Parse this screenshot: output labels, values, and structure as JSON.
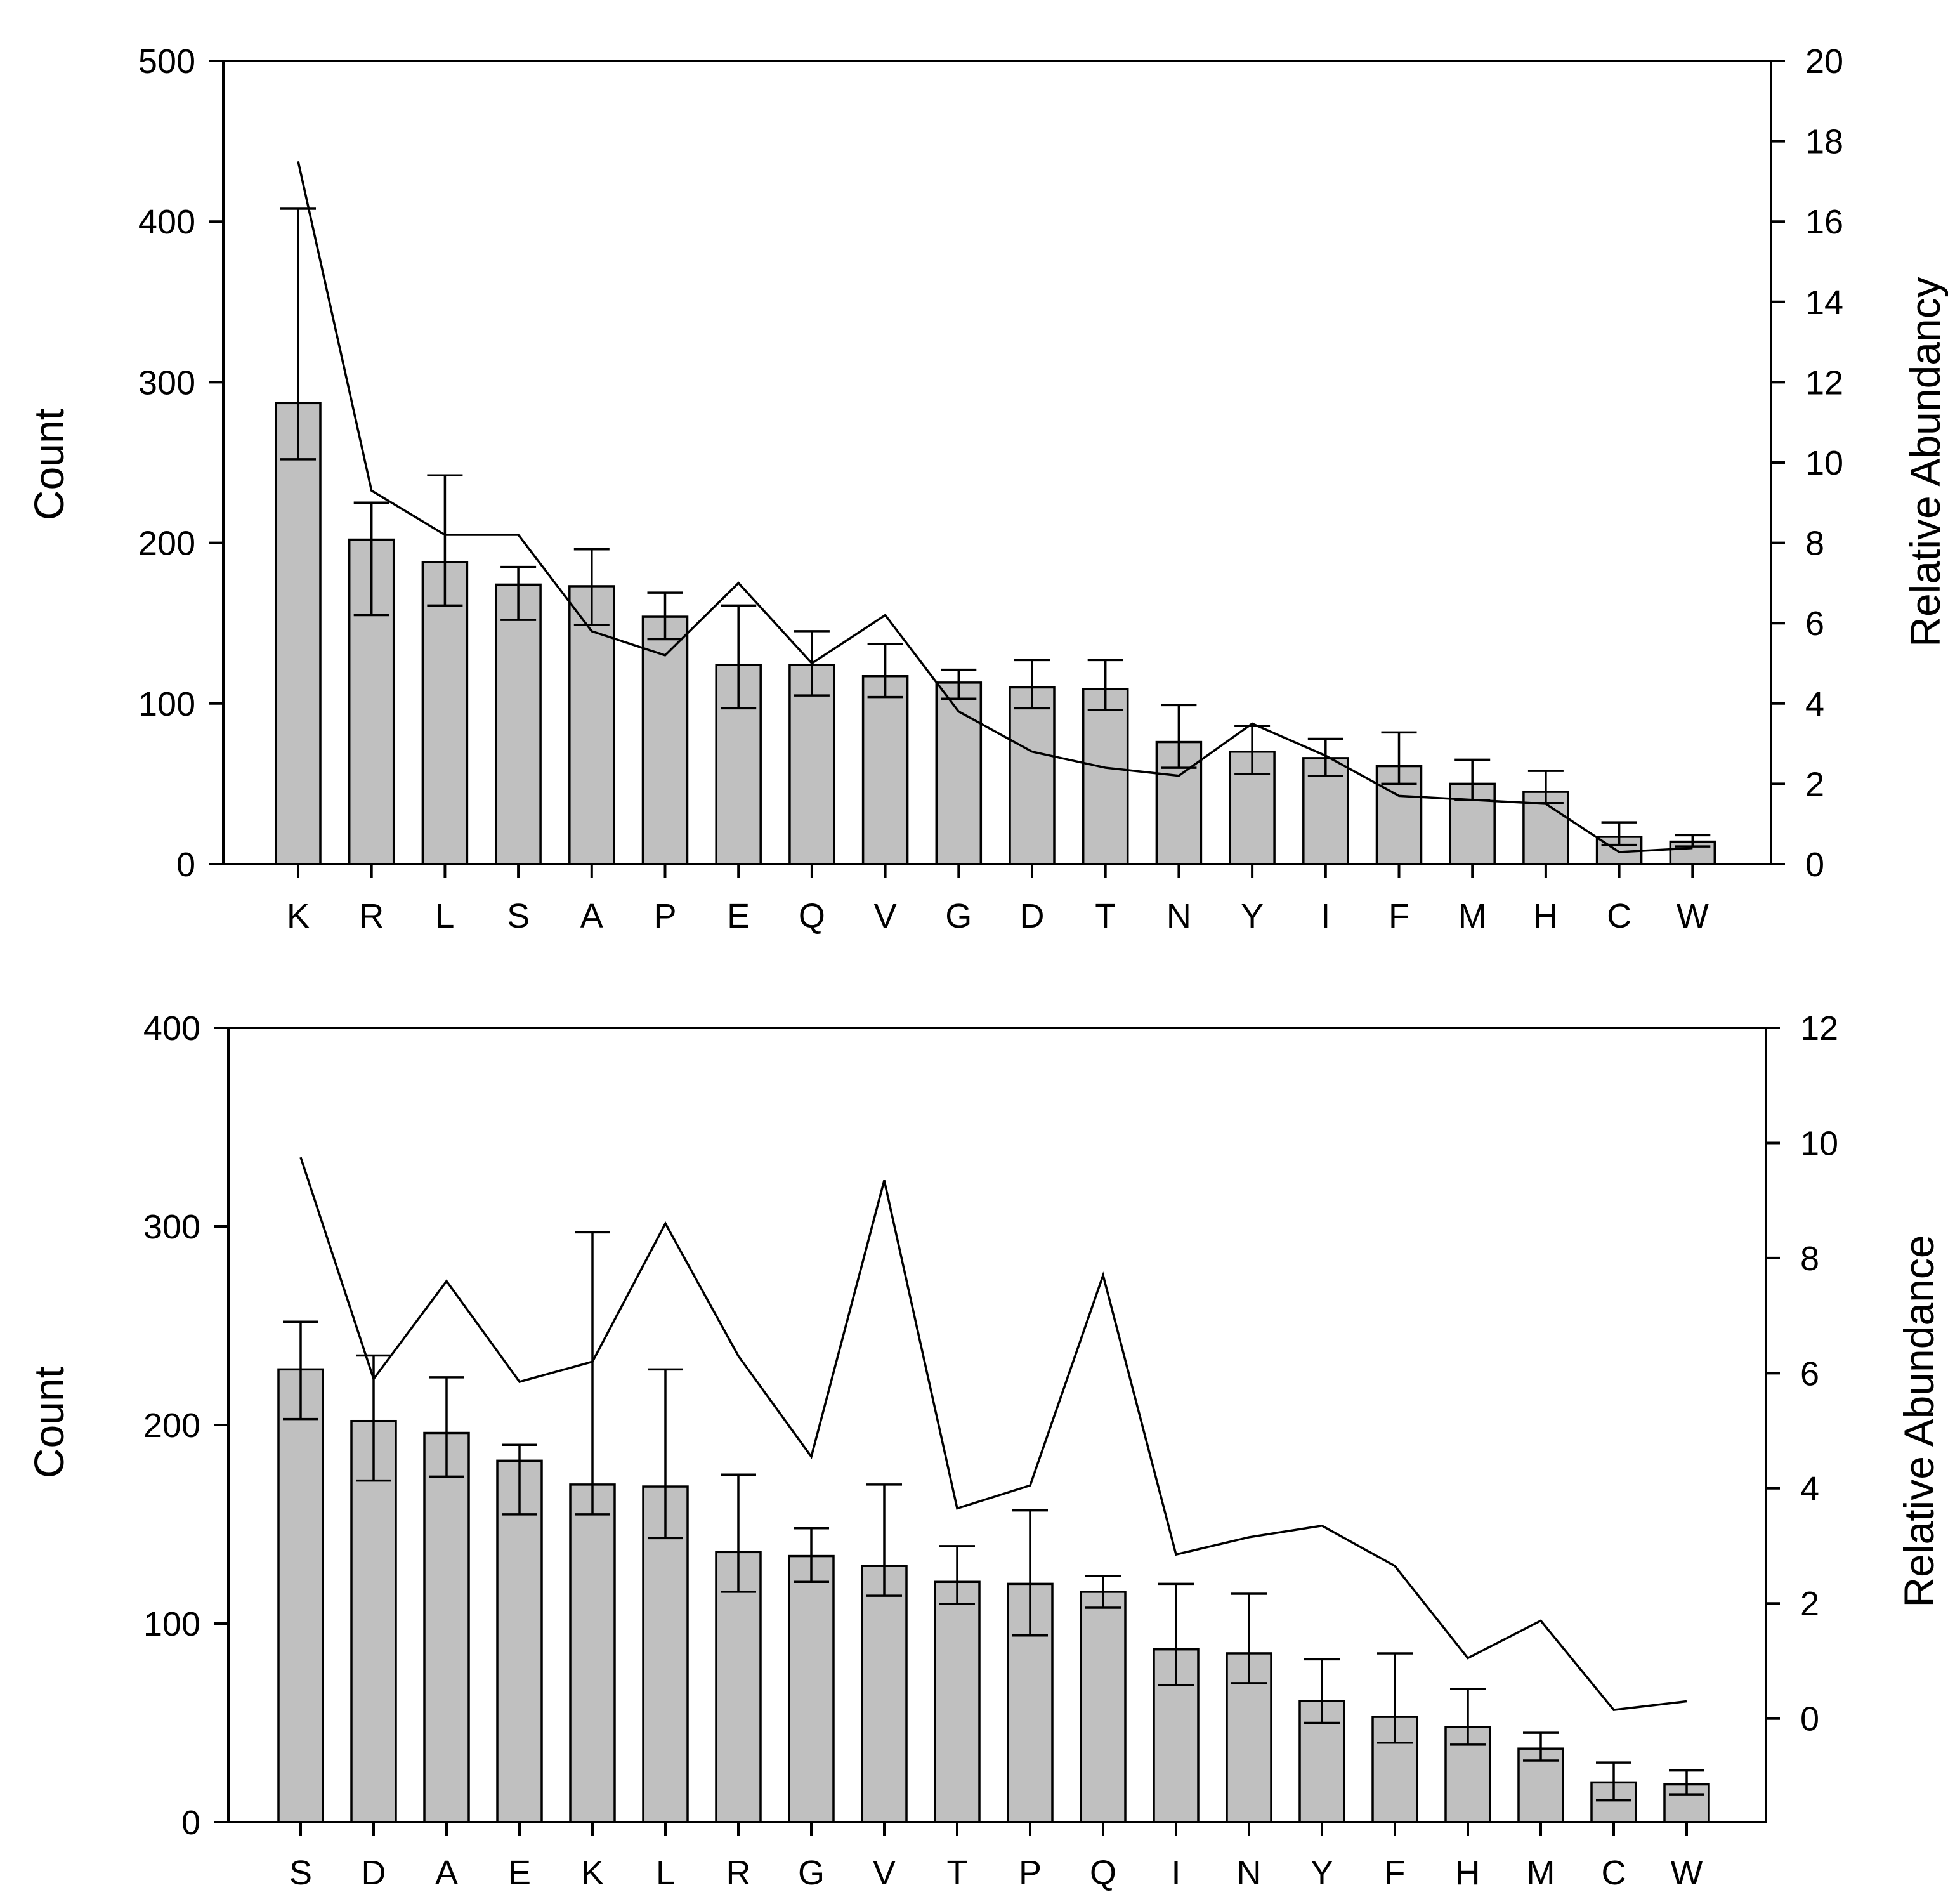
{
  "chart_data": [
    {
      "type": "bar",
      "panel": "top",
      "categories": [
        "K",
        "R",
        "L",
        "S",
        "A",
        "P",
        "E",
        "Q",
        "V",
        "G",
        "D",
        "T",
        "N",
        "Y",
        "I",
        "F",
        "M",
        "H",
        "C",
        "W"
      ],
      "series": [
        {
          "name": "Count",
          "axis": "left",
          "kind": "bar",
          "values": [
            287,
            202,
            188,
            174,
            173,
            154,
            124,
            124,
            117,
            113,
            110,
            109,
            76,
            70,
            66,
            61,
            50,
            45,
            17,
            14
          ],
          "error_low": [
            252,
            155,
            161,
            152,
            149,
            140,
            97,
            105,
            104,
            103,
            97,
            96,
            60,
            56,
            55,
            50,
            40,
            38,
            12,
            11
          ],
          "error_high": [
            408,
            225,
            242,
            185,
            196,
            169,
            161,
            145,
            137,
            121,
            127,
            127,
            99,
            86,
            78,
            82,
            65,
            58,
            26,
            18
          ]
        },
        {
          "name": "Relative Abundancy",
          "axis": "right",
          "kind": "line",
          "values": [
            17.5,
            9.3,
            8.2,
            8.2,
            5.8,
            5.2,
            7.0,
            5.0,
            6.2,
            3.8,
            2.8,
            2.4,
            2.2,
            3.5,
            2.7,
            1.7,
            1.6,
            1.5,
            0.3,
            0.4
          ]
        }
      ],
      "ylabel": "Count",
      "ylabel_right": "Relative Abundancy",
      "ylim": [
        0,
        500
      ],
      "yticks": [
        0,
        100,
        200,
        300,
        400,
        500
      ],
      "ylim_right": [
        0,
        20
      ],
      "yticks_right": [
        0,
        2,
        4,
        6,
        8,
        10,
        12,
        14,
        16,
        18,
        20
      ]
    },
    {
      "type": "bar",
      "panel": "bottom",
      "categories": [
        "S",
        "D",
        "A",
        "E",
        "K",
        "L",
        "R",
        "G",
        "V",
        "T",
        "P",
        "Q",
        "I",
        "N",
        "Y",
        "F",
        "H",
        "M",
        "C",
        "W"
      ],
      "series": [
        {
          "name": "Count",
          "axis": "left",
          "kind": "bar",
          "values": [
            228,
            202,
            196,
            182,
            170,
            169,
            136,
            134,
            129,
            121,
            120,
            116,
            87,
            85,
            61,
            53,
            48,
            37,
            20,
            19
          ],
          "error_low": [
            203,
            172,
            174,
            155,
            155,
            143,
            116,
            121,
            114,
            110,
            94,
            108,
            69,
            70,
            50,
            40,
            39,
            31,
            11,
            14
          ],
          "error_high": [
            252,
            235,
            224,
            190,
            297,
            228,
            175,
            148,
            170,
            139,
            157,
            124,
            120,
            115,
            82,
            85,
            67,
            45,
            30,
            26
          ]
        },
        {
          "name": "Relative Abundance",
          "axis": "right",
          "kind": "line",
          "values": [
            9.75,
            5.9,
            7.6,
            5.85,
            6.2,
            8.6,
            6.3,
            4.55,
            9.35,
            3.65,
            4.05,
            7.7,
            2.85,
            3.15,
            3.35,
            2.65,
            1.05,
            1.7,
            0.15,
            0.3
          ]
        }
      ],
      "ylabel": "Count",
      "ylabel_right": "Relative Abundance",
      "ylim": [
        0,
        400
      ],
      "yticks": [
        0,
        100,
        200,
        300,
        400
      ],
      "ylim_right": [
        -1.8,
        12
      ],
      "yticks_right": [
        0,
        2,
        4,
        6,
        8,
        10,
        12
      ]
    }
  ]
}
